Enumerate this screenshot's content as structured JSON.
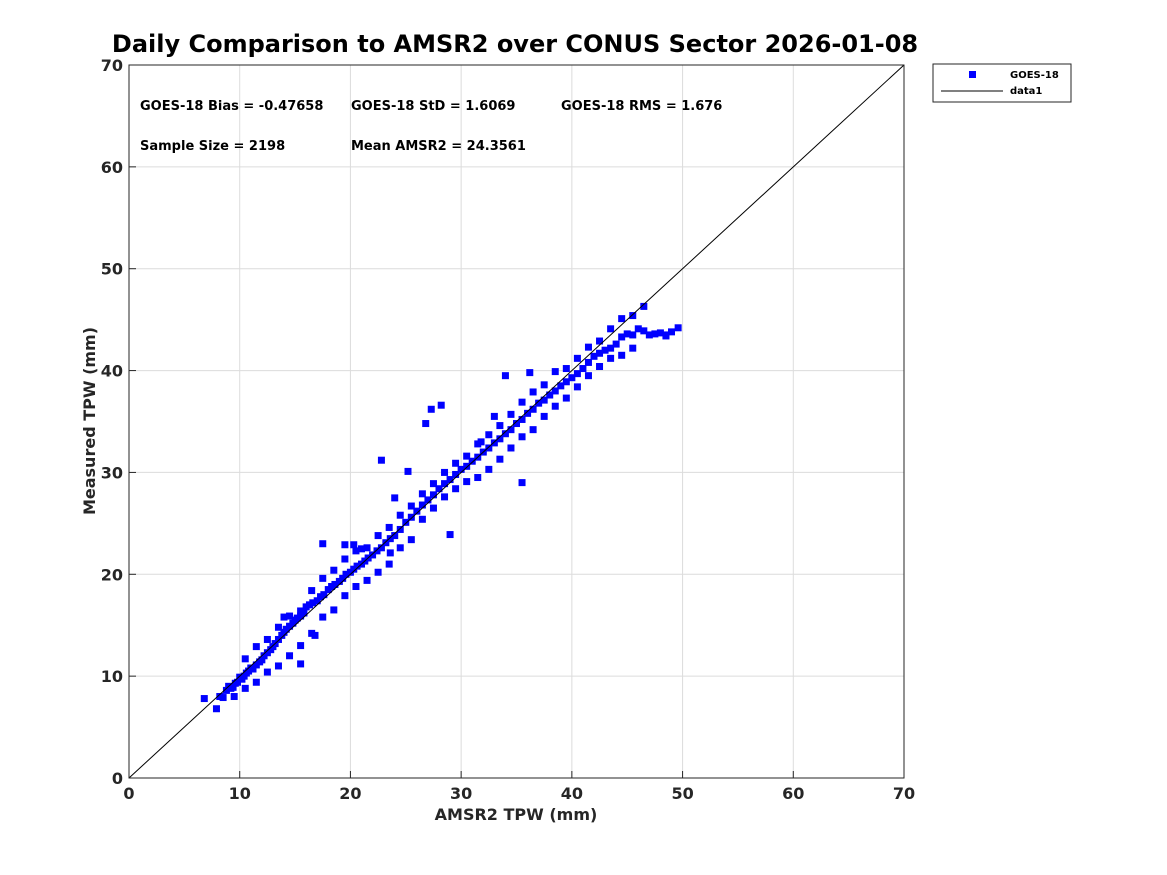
{
  "chart_data": {
    "type": "scatter",
    "title": "Daily Comparison to AMSR2 over CONUS Sector 2026-01-08",
    "xlabel": "AMSR2 TPW (mm)",
    "ylabel": "Measured TPW (mm)",
    "xlim": [
      0,
      70
    ],
    "ylim": [
      0,
      70
    ],
    "xticks": [
      "0",
      "10",
      "20",
      "30",
      "40",
      "50",
      "60",
      "70"
    ],
    "yticks": [
      "0",
      "10",
      "20",
      "30",
      "40",
      "50",
      "60",
      "70"
    ],
    "grid": true,
    "legend_position": "outside-top-right",
    "stats": {
      "bias": "GOES-18 Bias = -0.47658",
      "std": "GOES-18 StD = 1.6069",
      "rms": "GOES-18 RMS = 1.676",
      "sample_size": "Sample Size = 2198",
      "mean": "Mean AMSR2 = 24.3561"
    },
    "series": [
      {
        "name": "GOES-18",
        "kind": "scatter",
        "marker": "square",
        "color": "#0000ff",
        "x": [
          6.8,
          7.9,
          8.2,
          8.5,
          8.8,
          9.0,
          9.2,
          9.4,
          9.6,
          9.8,
          10.0,
          10.2,
          10.4,
          10.6,
          10.8,
          11.0,
          11.2,
          11.5,
          11.8,
          12.0,
          12.2,
          12.5,
          12.8,
          13.0,
          13.2,
          13.5,
          13.8,
          14.0,
          14.2,
          14.5,
          14.8,
          15.0,
          15.2,
          15.5,
          15.8,
          16.0,
          16.3,
          16.6,
          17.0,
          17.3,
          17.6,
          18.0,
          18.3,
          18.6,
          19.0,
          19.3,
          19.6,
          20.0,
          20.3,
          20.6,
          21.0,
          21.3,
          21.6,
          22.0,
          22.4,
          22.8,
          23.2,
          23.6,
          24.0,
          24.5,
          25.0,
          25.5,
          26.0,
          26.5,
          27.0,
          27.5,
          28.0,
          28.5,
          29.0,
          29.5,
          30.0,
          30.5,
          31.0,
          31.5,
          32.0,
          32.5,
          33.0,
          33.5,
          34.0,
          34.5,
          35.0,
          35.5,
          36.0,
          36.5,
          37.0,
          37.5,
          38.0,
          38.5,
          39.0,
          39.5,
          40.0,
          40.5,
          41.0,
          41.5,
          42.0,
          42.5,
          43.0,
          43.5,
          44.0,
          44.5,
          45.0,
          45.5,
          46.0,
          46.5,
          47.0,
          47.5,
          48.0,
          48.5,
          49.0,
          49.6,
          10.5,
          11.5,
          12.5,
          13.5,
          14.5,
          15.5,
          16.5,
          17.5,
          18.5,
          19.5,
          20.5,
          21.5,
          22.5,
          23.5,
          24.5,
          25.5,
          26.5,
          27.5,
          28.5,
          29.5,
          30.5,
          31.5,
          32.5,
          33.5,
          34.5,
          35.5,
          36.5,
          37.5,
          38.5,
          39.5,
          40.5,
          41.5,
          42.5,
          43.5,
          44.5,
          45.5,
          9.5,
          10.5,
          11.5,
          12.5,
          13.5,
          14.5,
          15.5,
          16.5,
          17.5,
          18.5,
          19.5,
          20.5,
          21.5,
          22.5,
          23.5,
          24.5,
          25.5,
          26.5,
          27.5,
          28.5,
          29.5,
          30.5,
          31.5,
          32.5,
          33.5,
          34.5,
          35.5,
          36.5,
          37.5,
          38.5,
          39.5,
          40.5,
          41.5,
          42.5,
          43.5,
          44.5,
          17.5,
          19.5,
          20.3,
          22.8,
          23.6,
          26.8,
          27.3,
          28.2,
          29.0,
          31.8,
          34.0,
          36.2,
          14.0,
          15.5,
          25.2,
          35.5,
          16.8,
          21.0,
          24.0,
          33.0,
          45.5,
          46.5,
          48.5
        ],
        "y": [
          7.8,
          6.8,
          8.0,
          7.9,
          8.6,
          9.0,
          8.8,
          8.9,
          9.3,
          9.4,
          9.9,
          9.7,
          10.0,
          10.3,
          10.5,
          10.8,
          10.7,
          11.1,
          11.4,
          11.6,
          12.0,
          12.3,
          12.6,
          12.9,
          13.2,
          13.6,
          14.0,
          14.3,
          14.6,
          14.9,
          15.2,
          15.5,
          15.7,
          15.9,
          16.2,
          16.8,
          17.0,
          17.2,
          17.4,
          17.8,
          18.0,
          18.5,
          18.8,
          19.0,
          19.3,
          19.6,
          20.0,
          20.2,
          20.5,
          20.8,
          21.0,
          21.3,
          21.6,
          21.9,
          22.3,
          22.6,
          23.1,
          23.5,
          23.8,
          24.4,
          25.1,
          25.6,
          26.2,
          26.8,
          27.3,
          27.8,
          28.4,
          28.9,
          29.3,
          29.8,
          30.3,
          30.6,
          31.1,
          31.5,
          32.0,
          32.4,
          32.9,
          33.3,
          33.8,
          34.2,
          34.8,
          35.2,
          35.8,
          36.2,
          36.8,
          37.1,
          37.6,
          38.0,
          38.5,
          38.9,
          39.3,
          39.7,
          40.2,
          40.8,
          41.4,
          41.7,
          42.0,
          42.2,
          42.6,
          43.3,
          43.6,
          43.5,
          44.1,
          43.9,
          43.5,
          43.6,
          43.7,
          43.4,
          43.8,
          44.2,
          11.7,
          12.9,
          13.6,
          14.8,
          15.9,
          16.4,
          18.4,
          19.6,
          20.4,
          21.5,
          22.3,
          22.6,
          23.8,
          24.6,
          25.8,
          26.7,
          27.9,
          28.9,
          30.0,
          30.9,
          31.6,
          32.8,
          33.7,
          34.6,
          35.7,
          36.9,
          37.9,
          38.6,
          39.9,
          40.2,
          41.2,
          42.3,
          42.9,
          44.1,
          45.1,
          45.4,
          8.0,
          8.8,
          9.4,
          10.4,
          11.0,
          12.0,
          13.0,
          14.2,
          15.8,
          16.5,
          17.9,
          18.8,
          19.4,
          20.2,
          21.0,
          22.6,
          23.4,
          25.4,
          26.5,
          27.6,
          28.4,
          29.1,
          29.5,
          30.3,
          31.3,
          32.4,
          33.5,
          34.2,
          35.5,
          36.5,
          37.3,
          38.4,
          39.5,
          40.4,
          41.2,
          41.5,
          23.0,
          22.9,
          22.9,
          31.2,
          22.1,
          34.8,
          36.2,
          36.6,
          23.9,
          33.0,
          39.5,
          39.8,
          15.8,
          11.2,
          30.1,
          29.0,
          14.0,
          22.5,
          27.5,
          35.5,
          42.2,
          46.3,
          43.5
        ]
      },
      {
        "name": "data1",
        "kind": "line",
        "color": "#000000",
        "x": [
          0,
          70
        ],
        "y": [
          0,
          70
        ]
      }
    ]
  }
}
